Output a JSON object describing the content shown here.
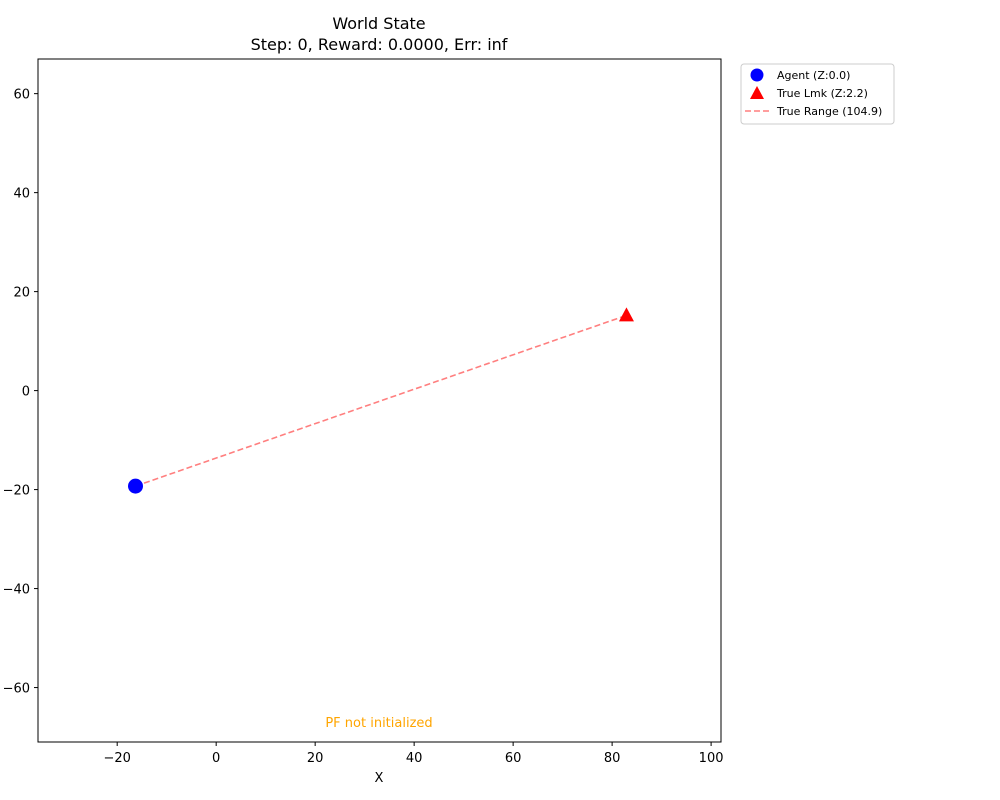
{
  "chart_data": {
    "type": "scatter",
    "title": "World State",
    "subtitle": "Step: 0, Reward: 0.0000, Err: inf",
    "xlabel": "X",
    "ylabel": "",
    "xlim": [
      -36,
      102
    ],
    "ylim": [
      -71,
      67
    ],
    "xticks": [
      -20,
      0,
      20,
      40,
      60,
      80,
      100
    ],
    "yticks": [
      -60,
      -40,
      -20,
      0,
      20,
      40,
      60
    ],
    "xtick_labels": [
      "−20",
      "0",
      "20",
      "40",
      "60",
      "80",
      "100"
    ],
    "ytick_labels": [
      "−60",
      "−40",
      "−20",
      "0",
      "20",
      "40",
      "60"
    ],
    "grid": false,
    "legend_position": "outside-top-right",
    "series": [
      {
        "name": "Agent (Z:0.0)",
        "marker": "circle",
        "color": "#0000ff",
        "x": [
          -16.3
        ],
        "y": [
          -19.3
        ]
      },
      {
        "name": "True Lmk (Z:2.2)",
        "marker": "triangle",
        "color": "#ff0000",
        "x": [
          82.9
        ],
        "y": [
          15.2
        ]
      },
      {
        "name": "True Range (104.9)",
        "marker": "dashed-line",
        "color": "#ff7f7f",
        "x": [
          -16.3,
          82.9
        ],
        "y": [
          -19.3,
          15.2
        ]
      }
    ],
    "annotation": {
      "text": "PF not initialized",
      "color": "#ffa500"
    }
  }
}
